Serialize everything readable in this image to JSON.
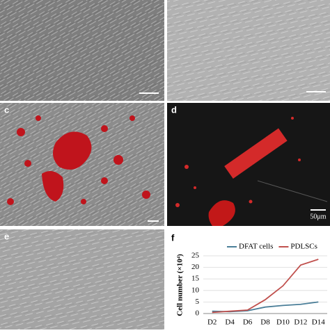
{
  "panels": {
    "labels": [
      "c",
      "d",
      "e",
      "f"
    ],
    "scale_bar": "50μm"
  },
  "chart_data": {
    "type": "line",
    "y_label": "Cell number (×10⁴)",
    "categories": [
      "D2",
      "D4",
      "D6",
      "D8",
      "D10",
      "D12",
      "D14"
    ],
    "series": [
      {
        "name": "DFAT cells",
        "color": "#4a7e98",
        "values": [
          1,
          0.8,
          1.2,
          2.8,
          3.5,
          4,
          5
        ]
      },
      {
        "name": "PDLSCs",
        "color": "#c0504d",
        "values": [
          0.5,
          1,
          1.5,
          6,
          12,
          21,
          23.5
        ]
      }
    ],
    "ylim": [
      0,
      25
    ],
    "yticks": [
      0,
      5,
      10,
      15,
      20,
      25
    ],
    "grid": true,
    "legend": "top"
  }
}
